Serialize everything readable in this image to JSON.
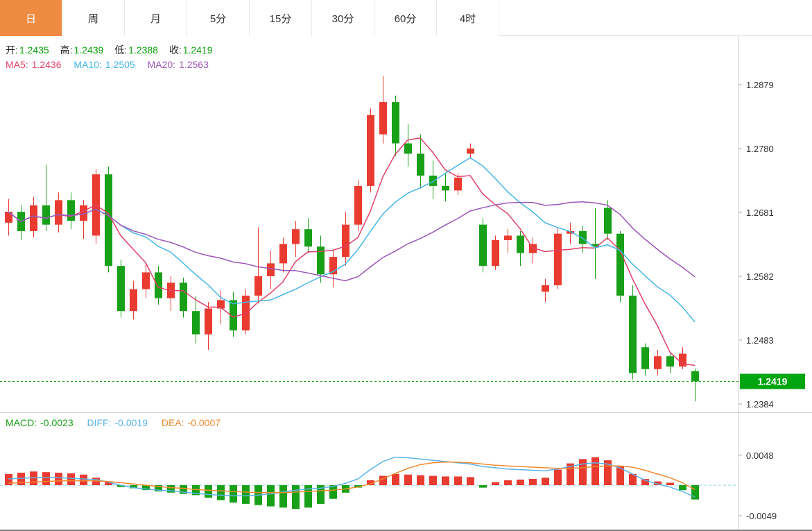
{
  "tabs": [
    {
      "label": "日",
      "active": true
    },
    {
      "label": "周",
      "active": false
    },
    {
      "label": "月",
      "active": false
    },
    {
      "label": "5分",
      "active": false
    },
    {
      "label": "15分",
      "active": false
    },
    {
      "label": "30分",
      "active": false
    },
    {
      "label": "60分",
      "active": false
    },
    {
      "label": "4时",
      "active": false
    }
  ],
  "ohlc_legend": {
    "open_label": "开:",
    "open": "1.2435",
    "high_label": "高:",
    "high": "1.2439",
    "low_label": "低:",
    "low": "1.2388",
    "close_label": "收:",
    "close": "1.2419"
  },
  "ma_legend": {
    "ma5_label": "MA5:",
    "ma5": "1.2436",
    "ma10_label": "MA10:",
    "ma10": "1.2505",
    "ma20_label": "MA20:",
    "ma20": "1.2563"
  },
  "macd_legend": {
    "macd_label": "MACD:",
    "macd": "-0.0023",
    "diff_label": "DIFF:",
    "diff": "-0.0019",
    "dea_label": "DEA:",
    "dea": "-0.0007"
  },
  "colors": {
    "accent_tab": "#ef8b40",
    "up": "#e93b30",
    "down": "#18a018",
    "badge": "#00a510",
    "ma5": "#e23f68",
    "ma10": "#45b6e8",
    "ma20": "#9c55b8",
    "diff": "#5ab3e8",
    "dea": "#ef8a2f",
    "zero_line": "#8fd2de",
    "axis_text": "#333333"
  },
  "chart_data": {
    "type": "candlestick",
    "title": "Daily candlestick chart with MA5/MA10/MA20 overlays and MACD sub-chart",
    "y_axis_ticks": [
      1.2879,
      1.278,
      1.2681,
      1.2582,
      1.2483,
      1.2384
    ],
    "ylim": [
      1.2384,
      1.2879
    ],
    "current_price": 1.2419,
    "ma_windows": [
      5,
      10,
      20
    ],
    "candles": [
      [
        1.2665,
        1.2702,
        1.2645,
        1.2682
      ],
      [
        1.2682,
        1.2692,
        1.2638,
        1.2652
      ],
      [
        1.2652,
        1.2705,
        1.2642,
        1.2692
      ],
      [
        1.2692,
        1.2755,
        1.2652,
        1.2662
      ],
      [
        1.2662,
        1.2712,
        1.265,
        1.27
      ],
      [
        1.27,
        1.2712,
        1.2655,
        1.2668
      ],
      [
        1.2668,
        1.27,
        1.264,
        1.2692
      ],
      [
        1.2645,
        1.2748,
        1.2632,
        1.274
      ],
      [
        1.274,
        1.2752,
        1.2588,
        1.2598
      ],
      [
        1.2598,
        1.2608,
        1.2518,
        1.2528
      ],
      [
        1.2528,
        1.2575,
        1.2515,
        1.2562
      ],
      [
        1.2562,
        1.2602,
        1.2548,
        1.2588
      ],
      [
        1.2588,
        1.2598,
        1.2538,
        1.2548
      ],
      [
        1.2548,
        1.2582,
        1.2528,
        1.2572
      ],
      [
        1.2572,
        1.258,
        1.2518,
        1.2528
      ],
      [
        1.2528,
        1.2552,
        1.2478,
        1.2492
      ],
      [
        1.2492,
        1.2542,
        1.2468,
        1.2532
      ],
      [
        1.2532,
        1.256,
        1.2508,
        1.2545
      ],
      [
        1.2545,
        1.2558,
        1.2488,
        1.2498
      ],
      [
        1.2498,
        1.2562,
        1.2492,
        1.2552
      ],
      [
        1.2552,
        1.2658,
        1.254,
        1.2582
      ],
      [
        1.2582,
        1.2622,
        1.2562,
        1.2602
      ],
      [
        1.2602,
        1.2642,
        1.2588,
        1.2632
      ],
      [
        1.2632,
        1.2668,
        1.2612,
        1.2655
      ],
      [
        1.2655,
        1.2672,
        1.2618,
        1.2628
      ],
      [
        1.2628,
        1.2645,
        1.2572,
        1.2585
      ],
      [
        1.2585,
        1.2622,
        1.2565,
        1.2612
      ],
      [
        1.2612,
        1.2682,
        1.2598,
        1.2662
      ],
      [
        1.2662,
        1.2732,
        1.2652,
        1.2722
      ],
      [
        1.2722,
        1.2842,
        1.2712,
        1.2832
      ],
      [
        1.2802,
        1.2892,
        1.2788,
        1.2852
      ],
      [
        1.2852,
        1.2862,
        1.2768,
        1.2788
      ],
      [
        1.2788,
        1.2818,
        1.2752,
        1.2772
      ],
      [
        1.2772,
        1.2802,
        1.2718,
        1.2738
      ],
      [
        1.2738,
        1.2762,
        1.2702,
        1.2722
      ],
      [
        1.2722,
        1.2742,
        1.2698,
        1.2715
      ],
      [
        1.2715,
        1.2742,
        1.2708,
        1.2735
      ],
      [
        1.2772,
        1.2788,
        1.2765,
        1.278
      ],
      [
        1.2662,
        1.2672,
        1.2588,
        1.2598
      ],
      [
        1.2598,
        1.2645,
        1.2592,
        1.2638
      ],
      [
        1.2638,
        1.2655,
        1.2618,
        1.2645
      ],
      [
        1.2645,
        1.2652,
        1.2598,
        1.2618
      ],
      [
        1.2618,
        1.2642,
        1.2602,
        1.2632
      ],
      [
        1.2558,
        1.2578,
        1.2542,
        1.2568
      ],
      [
        1.2568,
        1.2658,
        1.2562,
        1.2648
      ],
      [
        1.2648,
        1.2665,
        1.2632,
        1.2652
      ],
      [
        1.2652,
        1.266,
        1.2618,
        1.2632
      ],
      [
        1.2632,
        1.2688,
        1.2578,
        1.2628
      ],
      [
        1.2688,
        1.27,
        1.2638,
        1.2648
      ],
      [
        1.2648,
        1.2652,
        1.2542,
        1.2552
      ],
      [
        1.2552,
        1.2568,
        1.2422,
        1.2432
      ],
      [
        1.2472,
        1.2478,
        1.2428,
        1.2438
      ],
      [
        1.2438,
        1.2468,
        1.2428,
        1.2458
      ],
      [
        1.2458,
        1.2462,
        1.2432,
        1.2442
      ],
      [
        1.2442,
        1.2472,
        1.2438,
        1.2462
      ],
      [
        1.2435,
        1.2439,
        1.2388,
        1.2419
      ]
    ],
    "macd": {
      "axis_ticks": [
        0.0048,
        -0.0049
      ],
      "ylim": [
        -0.0049,
        0.0048
      ],
      "current": {
        "macd": -0.0023,
        "diff": -0.0019,
        "dea": -0.0007
      },
      "scale": 0.0001,
      "histogram": [
        18,
        20,
        22,
        21,
        20,
        19,
        17,
        12,
        5,
        -3,
        -5,
        -8,
        -10,
        -12,
        -14,
        -16,
        -20,
        -24,
        -28,
        -30,
        -32,
        -34,
        -36,
        -38,
        -36,
        -30,
        -22,
        -12,
        -4,
        8,
        15,
        18,
        17,
        16,
        15,
        14,
        14,
        13,
        -4,
        5,
        8,
        9,
        10,
        12,
        25,
        35,
        42,
        45,
        40,
        30,
        18,
        10,
        6,
        4,
        -8,
        -23
      ],
      "diff": [
        10,
        11,
        12,
        12,
        12,
        11,
        10,
        9,
        5,
        0,
        -4,
        -6,
        -8,
        -9,
        -11,
        -13,
        -15,
        -16,
        -17,
        -17,
        -16,
        -14,
        -11,
        -8,
        -6,
        -5,
        -2,
        3,
        10,
        25,
        38,
        45,
        44,
        42,
        40,
        38,
        36,
        34,
        30,
        28,
        26,
        25,
        24,
        23,
        26,
        30,
        34,
        36,
        34,
        28,
        18,
        8,
        2,
        -3,
        -10,
        -19
      ],
      "dea": [
        3,
        4,
        5,
        6,
        7,
        7,
        7,
        7,
        6,
        4,
        2,
        0,
        -2,
        -4,
        -5,
        -7,
        -8,
        -9,
        -10,
        -11,
        -12,
        -12,
        -12,
        -11,
        -10,
        -9,
        -8,
        -6,
        -3,
        2,
        10,
        19,
        27,
        33,
        36,
        37,
        37,
        36,
        34,
        32,
        31,
        30,
        29,
        28,
        27,
        27,
        28,
        30,
        31,
        31,
        29,
        24,
        18,
        12,
        4,
        -7
      ]
    }
  }
}
